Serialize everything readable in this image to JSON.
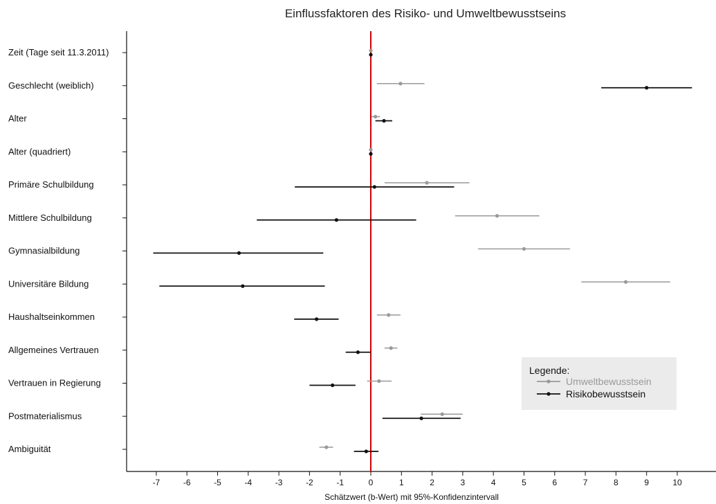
{
  "chart_data": {
    "type": "forest",
    "title": "Einflussfaktoren des Risiko- und Umweltbewusstseins",
    "xlabel": "Schätzwert (b-Wert) mit 95%-Konfidenzintervall",
    "ylabel": "",
    "xlim": [
      -8,
      11
    ],
    "x_ticks": [
      -7,
      -6,
      -5,
      -4,
      -3,
      -2,
      -1,
      0,
      1,
      2,
      3,
      4,
      5,
      6,
      7,
      8,
      9,
      10
    ],
    "reference_line": {
      "x": 0,
      "color": "#cc0000"
    },
    "grid": false,
    "categories": [
      "Zeit (Tage seit 11.3.2011)",
      "Geschlecht (weiblich)",
      "Alter",
      "Alter (quadriert)",
      "Primäre Schulbildung",
      "Mittlere Schulbildung",
      "Gymnasialbildung",
      "Universitäre Bildung",
      "Haushaltseinkommen",
      "Allgemeines Vertrauen",
      "Vertrauen in Regierung",
      "Postmaterialismus",
      "Ambiguität"
    ],
    "series": [
      {
        "name": "Umweltbewusstsein",
        "color": "#999999",
        "estimates": [
          0.0,
          0.97,
          0.15,
          0.0,
          1.83,
          4.12,
          5.0,
          8.32,
          0.58,
          0.66,
          0.27,
          2.33,
          -1.45
        ],
        "lower": [
          -0.02,
          0.2,
          0.02,
          -0.01,
          0.45,
          2.75,
          3.5,
          6.87,
          0.2,
          0.45,
          -0.12,
          1.63,
          -1.68
        ],
        "upper": [
          0.02,
          1.75,
          0.3,
          0.01,
          3.22,
          5.5,
          6.5,
          9.77,
          0.97,
          0.87,
          0.68,
          3.0,
          -1.23
        ]
      },
      {
        "name": "Risikobewusstsein",
        "color": "#111111",
        "estimates": [
          0.0,
          9.0,
          0.43,
          0.0,
          0.12,
          -1.12,
          -4.3,
          -4.18,
          -1.77,
          -0.42,
          -1.25,
          1.65,
          -0.15
        ],
        "lower": [
          -0.02,
          7.52,
          0.15,
          -0.01,
          -2.48,
          -3.72,
          -7.1,
          -6.9,
          -2.5,
          -0.82,
          -2.0,
          0.38,
          -0.55
        ],
        "upper": [
          0.02,
          10.48,
          0.7,
          0.01,
          2.72,
          1.48,
          -1.55,
          -1.5,
          -1.05,
          0.0,
          -0.5,
          2.93,
          0.25
        ]
      }
    ],
    "legend": {
      "title": "Legende:",
      "position": "bottom-right",
      "entries": [
        "Umweltbewusstsein",
        "Risikobewusstsein"
      ]
    }
  }
}
